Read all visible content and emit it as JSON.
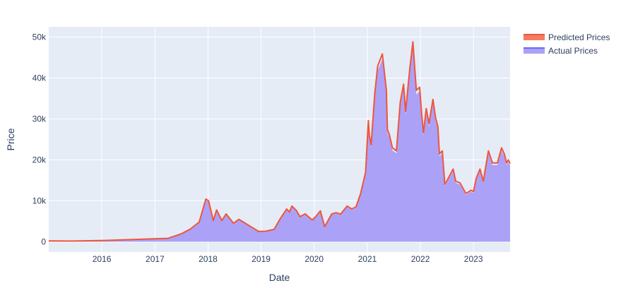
{
  "chart_data": {
    "type": "area",
    "title": "",
    "xlabel": "Date",
    "ylabel": "Price",
    "x_range": [
      "2015-01-01",
      "2023-09-10"
    ],
    "ylim": [
      -2500,
      52500
    ],
    "x_ticks": [
      {
        "value": "2016-01-01",
        "label": "2016"
      },
      {
        "value": "2017-01-01",
        "label": "2017"
      },
      {
        "value": "2018-01-01",
        "label": "2018"
      },
      {
        "value": "2019-01-01",
        "label": "2019"
      },
      {
        "value": "2020-01-01",
        "label": "2020"
      },
      {
        "value": "2021-01-01",
        "label": "2021"
      },
      {
        "value": "2022-01-01",
        "label": "2022"
      },
      {
        "value": "2023-01-01",
        "label": "2023"
      }
    ],
    "y_ticks": [
      {
        "value": 0,
        "label": "0"
      },
      {
        "value": 10000,
        "label": "10k"
      },
      {
        "value": 20000,
        "label": "20k"
      },
      {
        "value": 30000,
        "label": "30k"
      },
      {
        "value": 40000,
        "label": "40k"
      },
      {
        "value": 50000,
        "label": "50k"
      }
    ],
    "grid": true,
    "legend_position": "top-right",
    "colors": {
      "plot_background": "#e5ecf6",
      "grid": "#ffffff",
      "predicted_line": "#ef553b",
      "actual_fill": "#aba1f7",
      "actual_line": "#636efa",
      "text": "#2a3f5f"
    },
    "series": [
      {
        "name": "Predicted Prices",
        "kind": "line",
        "x": [
          "2015-01-01",
          "2015-06-01",
          "2016-01-01",
          "2016-06-01",
          "2017-01-01",
          "2017-04-01",
          "2017-07-01",
          "2017-09-01",
          "2017-11-01",
          "2017-12-17",
          "2018-01-05",
          "2018-02-06",
          "2018-03-01",
          "2018-04-06",
          "2018-05-05",
          "2018-06-25",
          "2018-08-01",
          "2018-09-01",
          "2018-11-25",
          "2018-12-15",
          "2019-02-01",
          "2019-04-01",
          "2019-05-15",
          "2019-06-26",
          "2019-07-15",
          "2019-08-01",
          "2019-09-01",
          "2019-09-25",
          "2019-11-01",
          "2019-12-18",
          "2020-01-10",
          "2020-02-13",
          "2020-03-13",
          "2020-04-01",
          "2020-05-01",
          "2020-06-01",
          "2020-07-01",
          "2020-08-15",
          "2020-09-15",
          "2020-10-15",
          "2020-11-15",
          "2020-12-01",
          "2020-12-20",
          "2021-01-08",
          "2021-01-15",
          "2021-01-27",
          "2021-02-21",
          "2021-03-13",
          "2021-04-14",
          "2021-05-12",
          "2021-05-19",
          "2021-06-01",
          "2021-06-22",
          "2021-07-20",
          "2021-08-15",
          "2021-09-07",
          "2021-09-21",
          "2021-10-20",
          "2021-11-10",
          "2021-12-04",
          "2021-12-27",
          "2022-01-10",
          "2022-01-22",
          "2022-02-10",
          "2022-03-01",
          "2022-03-28",
          "2022-04-15",
          "2022-05-01",
          "2022-05-12",
          "2022-06-01",
          "2022-06-18",
          "2022-07-01",
          "2022-08-14",
          "2022-09-01",
          "2022-10-01",
          "2022-11-09",
          "2022-11-21",
          "2022-12-15",
          "2023-01-01",
          "2023-01-20",
          "2023-02-15",
          "2023-03-10",
          "2023-04-14",
          "2023-05-12",
          "2023-06-15",
          "2023-07-13",
          "2023-08-01",
          "2023-08-17",
          "2023-08-29",
          "2023-09-10"
        ],
        "y": [
          300,
          230,
          430,
          650,
          1000,
          1150,
          2600,
          4200,
          6500,
          14100,
          13500,
          7000,
          10500,
          7000,
          9200,
          6100,
          7400,
          6500,
          4000,
          3400,
          3500,
          4100,
          7800,
          10800,
          9800,
          11800,
          10300,
          8300,
          9200,
          7200,
          8200,
          10200,
          5000,
          6600,
          9200,
          9600,
          9100,
          11800,
          10800,
          11500,
          15800,
          19100,
          23000,
          40000,
          35000,
          32000,
          49000,
          58000,
          62000,
          50000,
          37000,
          35500,
          31000,
          30000,
          46000,
          52000,
          43000,
          57000,
          66000,
          50000,
          51000,
          42000,
          36000,
          44000,
          39000,
          47000,
          41000,
          38000,
          29000,
          30000,
          19000,
          20000,
          24000,
          20000,
          19400,
          16000,
          16200,
          17000,
          16600,
          21000,
          24000,
          20000,
          30000,
          26000,
          26000,
          31000,
          29000,
          26000,
          27000,
          25800
        ],
        "scale": 0.74
      },
      {
        "name": "Actual Prices",
        "kind": "area",
        "x": [
          "2015-01-01",
          "2015-06-01",
          "2016-01-01",
          "2016-06-01",
          "2017-01-01",
          "2017-04-01",
          "2017-07-01",
          "2017-09-01",
          "2017-11-01",
          "2017-12-17",
          "2018-01-05",
          "2018-02-06",
          "2018-03-01",
          "2018-04-06",
          "2018-05-05",
          "2018-06-25",
          "2018-08-01",
          "2018-09-01",
          "2018-11-25",
          "2018-12-15",
          "2019-02-01",
          "2019-04-01",
          "2019-05-15",
          "2019-06-26",
          "2019-07-15",
          "2019-08-01",
          "2019-09-01",
          "2019-09-25",
          "2019-11-01",
          "2019-12-18",
          "2020-01-10",
          "2020-02-13",
          "2020-03-13",
          "2020-04-01",
          "2020-05-01",
          "2020-06-01",
          "2020-07-01",
          "2020-08-15",
          "2020-09-15",
          "2020-10-15",
          "2020-11-15",
          "2020-12-01",
          "2020-12-20",
          "2021-01-08",
          "2021-01-15",
          "2021-01-27",
          "2021-02-21",
          "2021-03-13",
          "2021-04-14",
          "2021-05-12",
          "2021-05-19",
          "2021-06-01",
          "2021-06-22",
          "2021-07-20",
          "2021-08-15",
          "2021-09-07",
          "2021-09-21",
          "2021-10-20",
          "2021-11-10",
          "2021-12-04",
          "2021-12-27",
          "2022-01-10",
          "2022-01-22",
          "2022-02-10",
          "2022-03-01",
          "2022-03-28",
          "2022-04-15",
          "2022-05-01",
          "2022-05-12",
          "2022-06-01",
          "2022-06-18",
          "2022-07-01",
          "2022-08-14",
          "2022-09-01",
          "2022-10-01",
          "2022-11-09",
          "2022-11-21",
          "2022-12-15",
          "2023-01-01",
          "2023-01-20",
          "2023-02-15",
          "2023-03-10",
          "2023-04-14",
          "2023-05-12",
          "2023-06-15",
          "2023-07-13",
          "2023-08-01",
          "2023-08-17",
          "2023-08-29",
          "2023-09-10"
        ],
        "y": [
          300,
          230,
          430,
          650,
          1000,
          1150,
          2600,
          4200,
          6500,
          14100,
          13500,
          7000,
          10500,
          7000,
          9200,
          6100,
          7400,
          6500,
          4000,
          3400,
          3500,
          4100,
          7800,
          10800,
          9800,
          11800,
          10300,
          8300,
          9200,
          7200,
          8200,
          10200,
          5000,
          6600,
          9200,
          9600,
          9100,
          11800,
          10800,
          11500,
          15800,
          19100,
          23000,
          40000,
          35000,
          32000,
          49000,
          58000,
          62000,
          50000,
          37000,
          35500,
          31000,
          30000,
          46000,
          52000,
          43000,
          57000,
          66000,
          50000,
          51000,
          42000,
          36000,
          44000,
          39000,
          47000,
          41000,
          38000,
          29000,
          30000,
          19000,
          20000,
          24000,
          20000,
          19400,
          16000,
          16200,
          17000,
          16600,
          21000,
          24000,
          20000,
          30000,
          26000,
          26000,
          31000,
          29000,
          26000,
          27000,
          25800
        ],
        "scale": 0.72
      }
    ]
  }
}
